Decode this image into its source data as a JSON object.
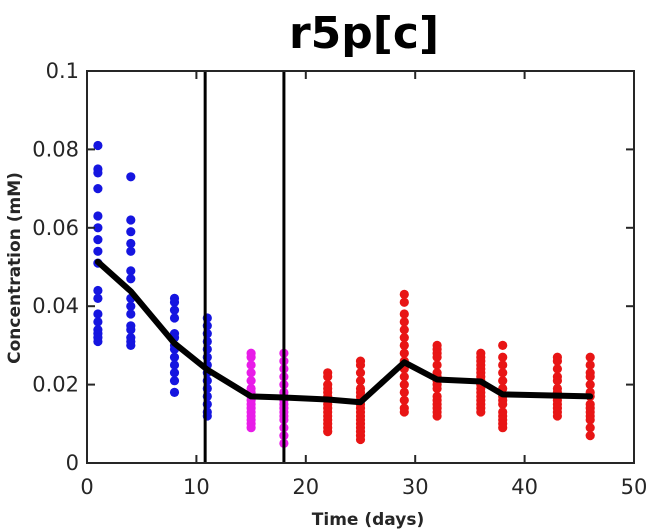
{
  "chart_data": {
    "type": "scatter",
    "title": "r5p[c]",
    "xlabel": "Time (days)",
    "ylabel": "Concentration (mM)",
    "xlim": [
      0,
      50
    ],
    "ylim": [
      0,
      0.1
    ],
    "xticks": [
      0,
      10,
      20,
      30,
      40,
      50
    ],
    "yticks": [
      0,
      0.02,
      0.04,
      0.06,
      0.08,
      0.1
    ],
    "ytick_labels": [
      "0",
      "0.02",
      "0.04",
      "0.06",
      "0.08",
      "0.1"
    ],
    "grid": false,
    "phase_boundaries": [
      10.8,
      18
    ],
    "series": [
      {
        "color": "#1515e0",
        "points": [
          [
            1,
            0.081
          ],
          [
            1,
            0.075
          ],
          [
            1,
            0.074
          ],
          [
            1,
            0.07
          ],
          [
            1,
            0.063
          ],
          [
            1,
            0.06
          ],
          [
            1,
            0.057
          ],
          [
            1,
            0.054
          ],
          [
            1,
            0.051
          ],
          [
            1,
            0.044
          ],
          [
            1,
            0.042
          ],
          [
            1,
            0.038
          ],
          [
            1,
            0.036
          ],
          [
            1,
            0.034
          ],
          [
            1,
            0.033
          ],
          [
            1,
            0.032
          ],
          [
            1,
            0.031
          ],
          [
            4,
            0.073
          ],
          [
            4,
            0.062
          ],
          [
            4,
            0.059
          ],
          [
            4,
            0.056
          ],
          [
            4,
            0.054
          ],
          [
            4,
            0.049
          ],
          [
            4,
            0.047
          ],
          [
            4,
            0.042
          ],
          [
            4,
            0.04
          ],
          [
            4,
            0.038
          ],
          [
            4,
            0.035
          ],
          [
            4,
            0.034
          ],
          [
            4,
            0.032
          ],
          [
            4,
            0.031
          ],
          [
            4,
            0.03
          ],
          [
            8,
            0.042
          ],
          [
            8,
            0.041
          ],
          [
            8,
            0.039
          ],
          [
            8,
            0.037
          ],
          [
            8,
            0.033
          ],
          [
            8,
            0.032
          ],
          [
            8,
            0.03
          ],
          [
            8,
            0.029
          ],
          [
            8,
            0.027
          ],
          [
            8,
            0.025
          ],
          [
            8,
            0.023
          ],
          [
            8,
            0.021
          ],
          [
            8,
            0.018
          ],
          [
            11,
            0.037
          ],
          [
            11,
            0.035
          ],
          [
            11,
            0.033
          ],
          [
            11,
            0.031
          ],
          [
            11,
            0.029
          ],
          [
            11,
            0.027
          ],
          [
            11,
            0.025
          ],
          [
            11,
            0.023
          ],
          [
            11,
            0.021
          ],
          [
            11,
            0.019
          ],
          [
            11,
            0.017
          ],
          [
            11,
            0.015
          ],
          [
            11,
            0.013
          ],
          [
            11,
            0.012
          ]
        ]
      },
      {
        "color": "#e81ce8",
        "points": [
          [
            15,
            0.028
          ],
          [
            15,
            0.027
          ],
          [
            15,
            0.025
          ],
          [
            15,
            0.023
          ],
          [
            15,
            0.021
          ],
          [
            15,
            0.019
          ],
          [
            15,
            0.018
          ],
          [
            15,
            0.017
          ],
          [
            15,
            0.016
          ],
          [
            15,
            0.015
          ],
          [
            15,
            0.014
          ],
          [
            15,
            0.013
          ],
          [
            15,
            0.012
          ],
          [
            15,
            0.011
          ],
          [
            15,
            0.01
          ],
          [
            15,
            0.009
          ],
          [
            18,
            0.028
          ],
          [
            18,
            0.026
          ],
          [
            18,
            0.024
          ],
          [
            18,
            0.022
          ],
          [
            18,
            0.02
          ],
          [
            18,
            0.018
          ],
          [
            18,
            0.017
          ],
          [
            18,
            0.016
          ],
          [
            18,
            0.015
          ],
          [
            18,
            0.014
          ],
          [
            18,
            0.013
          ],
          [
            18,
            0.012
          ],
          [
            18,
            0.011
          ],
          [
            18,
            0.009
          ],
          [
            18,
            0.007
          ],
          [
            18,
            0.005
          ]
        ]
      },
      {
        "color": "#e81515",
        "points": [
          [
            22,
            0.023
          ],
          [
            22,
            0.022
          ],
          [
            22,
            0.02
          ],
          [
            22,
            0.019
          ],
          [
            22,
            0.018
          ],
          [
            22,
            0.017
          ],
          [
            22,
            0.016
          ],
          [
            22,
            0.015
          ],
          [
            22,
            0.014
          ],
          [
            22,
            0.013
          ],
          [
            22,
            0.012
          ],
          [
            22,
            0.011
          ],
          [
            22,
            0.01
          ],
          [
            22,
            0.009
          ],
          [
            22,
            0.008
          ],
          [
            25,
            0.026
          ],
          [
            25,
            0.025
          ],
          [
            25,
            0.023
          ],
          [
            25,
            0.021
          ],
          [
            25,
            0.019
          ],
          [
            25,
            0.018
          ],
          [
            25,
            0.017
          ],
          [
            25,
            0.016
          ],
          [
            25,
            0.015
          ],
          [
            25,
            0.014
          ],
          [
            25,
            0.013
          ],
          [
            25,
            0.012
          ],
          [
            25,
            0.011
          ],
          [
            25,
            0.01
          ],
          [
            25,
            0.009
          ],
          [
            25,
            0.008
          ],
          [
            25,
            0.007
          ],
          [
            25,
            0.006
          ],
          [
            29,
            0.043
          ],
          [
            29,
            0.041
          ],
          [
            29,
            0.038
          ],
          [
            29,
            0.036
          ],
          [
            29,
            0.034
          ],
          [
            29,
            0.032
          ],
          [
            29,
            0.03
          ],
          [
            29,
            0.028
          ],
          [
            29,
            0.026
          ],
          [
            29,
            0.025
          ],
          [
            29,
            0.024
          ],
          [
            29,
            0.022
          ],
          [
            29,
            0.02
          ],
          [
            29,
            0.018
          ],
          [
            29,
            0.016
          ],
          [
            29,
            0.014
          ],
          [
            29,
            0.013
          ],
          [
            32,
            0.03
          ],
          [
            32,
            0.029
          ],
          [
            32,
            0.028
          ],
          [
            32,
            0.027
          ],
          [
            32,
            0.025
          ],
          [
            32,
            0.023
          ],
          [
            32,
            0.022
          ],
          [
            32,
            0.021
          ],
          [
            32,
            0.02
          ],
          [
            32,
            0.019
          ],
          [
            32,
            0.017
          ],
          [
            32,
            0.016
          ],
          [
            32,
            0.015
          ],
          [
            32,
            0.014
          ],
          [
            32,
            0.013
          ],
          [
            32,
            0.012
          ],
          [
            36,
            0.028
          ],
          [
            36,
            0.027
          ],
          [
            36,
            0.026
          ],
          [
            36,
            0.025
          ],
          [
            36,
            0.024
          ],
          [
            36,
            0.023
          ],
          [
            36,
            0.022
          ],
          [
            36,
            0.021
          ],
          [
            36,
            0.02
          ],
          [
            36,
            0.019
          ],
          [
            36,
            0.018
          ],
          [
            36,
            0.017
          ],
          [
            36,
            0.016
          ],
          [
            36,
            0.015
          ],
          [
            36,
            0.014
          ],
          [
            36,
            0.013
          ],
          [
            38,
            0.03
          ],
          [
            38,
            0.027
          ],
          [
            38,
            0.025
          ],
          [
            38,
            0.023
          ],
          [
            38,
            0.021
          ],
          [
            38,
            0.019
          ],
          [
            38,
            0.017
          ],
          [
            38,
            0.016
          ],
          [
            38,
            0.015
          ],
          [
            38,
            0.013
          ],
          [
            38,
            0.012
          ],
          [
            38,
            0.011
          ],
          [
            38,
            0.01
          ],
          [
            38,
            0.009
          ],
          [
            43,
            0.027
          ],
          [
            43,
            0.026
          ],
          [
            43,
            0.024
          ],
          [
            43,
            0.022
          ],
          [
            43,
            0.021
          ],
          [
            43,
            0.019
          ],
          [
            43,
            0.018
          ],
          [
            43,
            0.017
          ],
          [
            43,
            0.016
          ],
          [
            43,
            0.015
          ],
          [
            43,
            0.014
          ],
          [
            43,
            0.013
          ],
          [
            43,
            0.012
          ],
          [
            46,
            0.027
          ],
          [
            46,
            0.025
          ],
          [
            46,
            0.023
          ],
          [
            46,
            0.022
          ],
          [
            46,
            0.02
          ],
          [
            46,
            0.018
          ],
          [
            46,
            0.017
          ],
          [
            46,
            0.015
          ],
          [
            46,
            0.014
          ],
          [
            46,
            0.013
          ],
          [
            46,
            0.012
          ],
          [
            46,
            0.011
          ],
          [
            46,
            0.009
          ],
          [
            46,
            0.007
          ]
        ]
      }
    ],
    "line": {
      "color": "#000000",
      "x": [
        1,
        4,
        8,
        11,
        15,
        18,
        22,
        25,
        29,
        32,
        36,
        38,
        43,
        46
      ],
      "y": [
        0.0513,
        0.0438,
        0.0305,
        0.0238,
        0.017,
        0.0167,
        0.0162,
        0.0155,
        0.0257,
        0.0213,
        0.0208,
        0.0175,
        0.0172,
        0.017
      ]
    }
  }
}
